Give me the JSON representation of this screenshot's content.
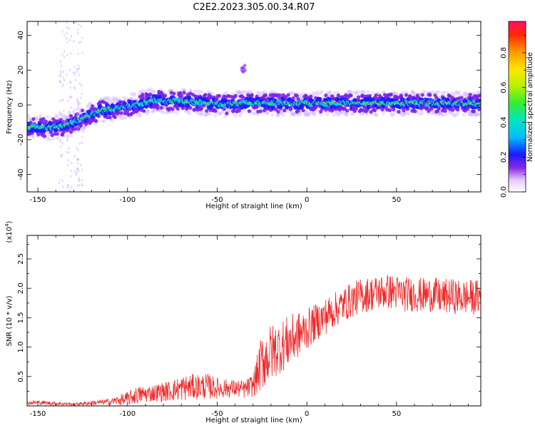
{
  "title": "C2E2.2023.305.00.34.R07",
  "colors": {
    "snr_line": "#ee2a2a",
    "axis": "#000000",
    "background": "#ffffff"
  },
  "chart_data": [
    {
      "type": "heatmap",
      "xlabel": "Height of straight line (km)",
      "ylabel": "Frequency (Hz)",
      "xlim": [
        -156,
        97
      ],
      "ylim": [
        -50,
        48
      ],
      "xticks": [
        -150,
        -100,
        -50,
        0,
        50
      ],
      "xtick_labels": [
        "-150",
        "-100",
        "-50",
        "0",
        "50"
      ],
      "yticks": [
        -40,
        -20,
        0,
        20,
        40
      ],
      "ytick_labels": [
        "-40",
        "-20",
        "0",
        "20",
        "40"
      ],
      "grid": false,
      "ridge": {
        "description": "dominant frequency ridge",
        "x": [
          -156,
          -145,
          -135,
          -125,
          -115,
          -105,
          -95,
          -85,
          -75,
          -65,
          -55,
          -45,
          -35,
          -25,
          -15,
          -5,
          5,
          15,
          25,
          35,
          45,
          55,
          65,
          75,
          85,
          95
        ],
        "y": [
          -13,
          -13,
          -12,
          -8,
          -3,
          -2,
          0,
          3,
          2,
          2,
          1,
          0,
          1,
          1,
          1,
          1,
          1,
          1,
          1,
          1,
          1,
          1,
          1,
          1,
          1,
          1
        ]
      },
      "colorbar": {
        "label": "Normalized spectral amplitude",
        "range": [
          0,
          0.98
        ],
        "ticks": [
          0.0,
          0.2,
          0.4,
          0.6,
          0.8
        ],
        "tick_labels": [
          "0.0",
          "0.2",
          "0.4",
          "0.6",
          "0.8"
        ]
      }
    },
    {
      "type": "line",
      "xlabel": "Height of straight line (km)",
      "ylabel": "SNR (10 * v/v)",
      "y_multiplier": "(x10",
      "y_multiplier_exp": "4",
      "y_multiplier_close": ")",
      "xlim": [
        -156,
        97
      ],
      "ylim": [
        0,
        2.9
      ],
      "xticks": [
        -150,
        -100,
        -50,
        0,
        50
      ],
      "xtick_labels": [
        "-150",
        "-100",
        "-50",
        "0",
        "50"
      ],
      "yticks": [
        0.5,
        1.0,
        1.5,
        2.0,
        2.5
      ],
      "ytick_labels": [
        "0.5",
        "1.0",
        "1.5",
        "2.0",
        "2.5"
      ],
      "grid": false,
      "series": [
        {
          "x": [
            -156,
            -150,
            -140,
            -130,
            -120,
            -110,
            -100,
            -95,
            -90,
            -85,
            -80,
            -75,
            -70,
            -65,
            -60,
            -55,
            -50,
            -45,
            -40,
            -35,
            -30,
            -25,
            -20,
            -15,
            -10,
            -5,
            0,
            5,
            10,
            15,
            20,
            25,
            30,
            35,
            40,
            45,
            50,
            55,
            60,
            65,
            70,
            75,
            80,
            85,
            90,
            97
          ],
          "y": [
            0.05,
            0.06,
            0.04,
            0.03,
            0.05,
            0.07,
            0.12,
            0.18,
            0.2,
            0.22,
            0.24,
            0.26,
            0.3,
            0.32,
            0.33,
            0.33,
            0.3,
            0.3,
            0.3,
            0.28,
            0.35,
            0.75,
            0.9,
            1.0,
            1.1,
            1.2,
            1.3,
            1.42,
            1.52,
            1.62,
            1.72,
            1.8,
            1.87,
            1.9,
            1.93,
            1.95,
            1.93,
            1.9,
            1.9,
            1.88,
            1.9,
            1.85,
            1.87,
            1.85,
            1.85,
            1.85
          ],
          "noise": [
            0.03,
            0.04,
            0.03,
            0.02,
            0.04,
            0.05,
            0.12,
            0.15,
            0.15,
            0.15,
            0.17,
            0.18,
            0.22,
            0.22,
            0.22,
            0.22,
            0.18,
            0.16,
            0.15,
            0.15,
            0.2,
            0.5,
            0.5,
            0.45,
            0.45,
            0.4,
            0.35,
            0.32,
            0.32,
            0.3,
            0.3,
            0.3,
            0.3,
            0.3,
            0.3,
            0.3,
            0.3,
            0.3,
            0.3,
            0.3,
            0.3,
            0.3,
            0.3,
            0.3,
            0.3,
            0.3
          ]
        }
      ]
    }
  ]
}
